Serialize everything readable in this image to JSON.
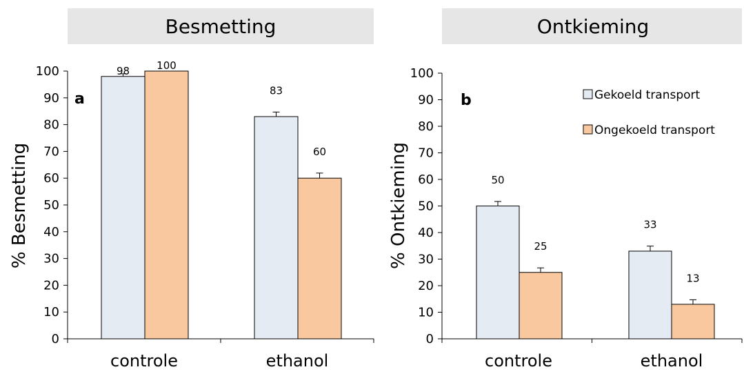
{
  "chart_data": [
    {
      "type": "bar",
      "title": "Besmetting",
      "panel_label": "a",
      "ylabel": "% Besmetting",
      "xlabel": "",
      "ylim": [
        0,
        100
      ],
      "yticks": [
        "0",
        "10",
        "20",
        "30",
        "40",
        "50",
        "60",
        "70",
        "80",
        "90",
        "100"
      ],
      "categories": [
        "controle",
        "ethanol"
      ],
      "series": [
        {
          "name": "Gekoeld transport",
          "color": "#e5ebf3",
          "values": [
            98,
            83
          ],
          "errors": [
            1,
            1.7
          ],
          "labels": [
            "98",
            "83"
          ]
        },
        {
          "name": "Ongekoeld transport",
          "color": "#fac89e",
          "values": [
            100,
            60
          ],
          "errors": [
            0,
            1.9
          ],
          "labels": [
            "100",
            "60"
          ]
        }
      ],
      "legend": false,
      "grid": false
    },
    {
      "type": "bar",
      "title": "Ontkieming",
      "panel_label": "b",
      "ylabel": "% Ontkieming",
      "xlabel": "",
      "ylim": [
        0,
        100
      ],
      "yticks": [
        "0",
        "10",
        "20",
        "30",
        "40",
        "50",
        "60",
        "70",
        "80",
        "90",
        "100"
      ],
      "categories": [
        "controle",
        "ethanol"
      ],
      "series": [
        {
          "name": "Gekoeld transport",
          "color": "#e5ebf3",
          "values": [
            50,
            33
          ],
          "errors": [
            1.7,
            1.9
          ],
          "labels": [
            "50",
            "33"
          ]
        },
        {
          "name": "Ongekoeld transport",
          "color": "#fac89e",
          "values": [
            25,
            13
          ],
          "errors": [
            1.7,
            1.7
          ],
          "labels": [
            "25",
            "13"
          ]
        }
      ],
      "legend": true,
      "legend_position": "top-right",
      "grid": false
    }
  ],
  "colors": {
    "title_bar": "#e6e6e6",
    "bar_outline": "#000000"
  }
}
